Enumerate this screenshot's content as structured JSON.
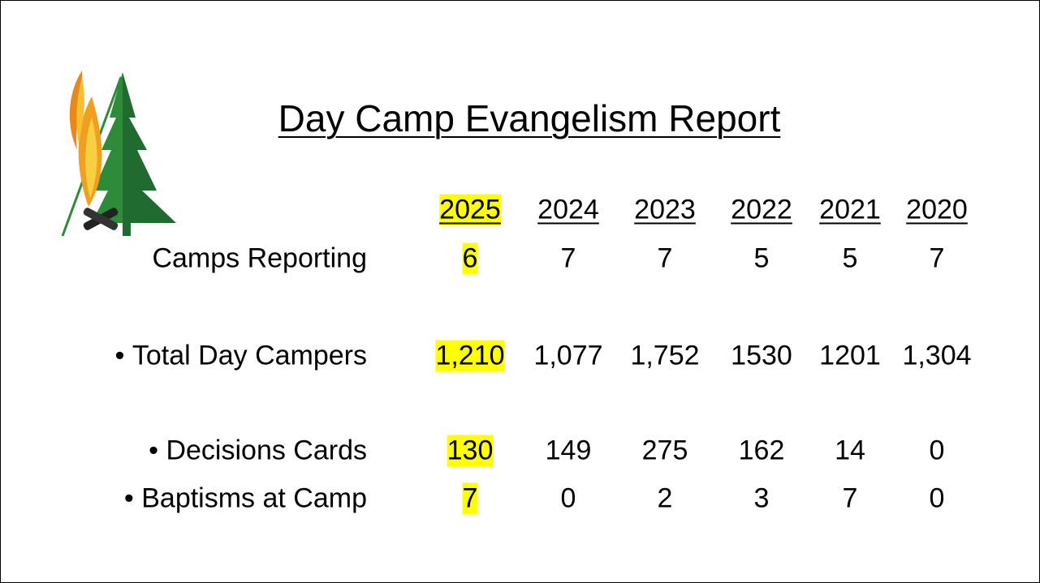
{
  "title": "Day Camp Evangelism Report",
  "table": {
    "columns": [
      "2025",
      "2024",
      "2023",
      "2022",
      "2021",
      "2020"
    ],
    "highlight_column": 0,
    "highlight_color": "#ffff00",
    "rows": [
      {
        "label": "Camps Reporting",
        "bullet": false,
        "values": [
          "6",
          "7",
          "7",
          "5",
          "5",
          "7"
        ]
      },
      {
        "label": "Total Day Campers",
        "bullet": true,
        "values": [
          "1,210",
          "1,077",
          "1,752",
          "1530",
          "1201",
          "1,304"
        ]
      },
      {
        "label": "Decisions Cards",
        "bullet": true,
        "values": [
          "130",
          "149",
          "275",
          "162",
          "14",
          "0"
        ]
      },
      {
        "label": "Baptisms at Camp",
        "bullet": true,
        "values": [
          "7",
          "0",
          "2",
          "3",
          "7",
          "0"
        ]
      }
    ]
  }
}
